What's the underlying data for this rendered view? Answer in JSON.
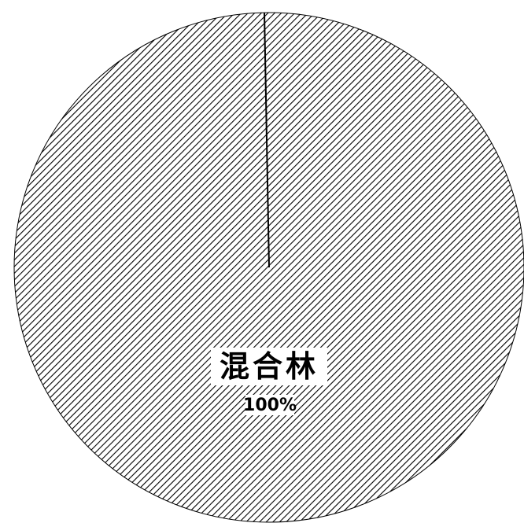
{
  "chart_data": {
    "type": "pie",
    "slices": [
      {
        "label": "混合林",
        "value": 100,
        "value_label": "100%",
        "fill": "diagonal-hatch"
      }
    ],
    "colors": {
      "background": "#ffffff",
      "hatch": "#000000",
      "edge": "#000000"
    }
  }
}
